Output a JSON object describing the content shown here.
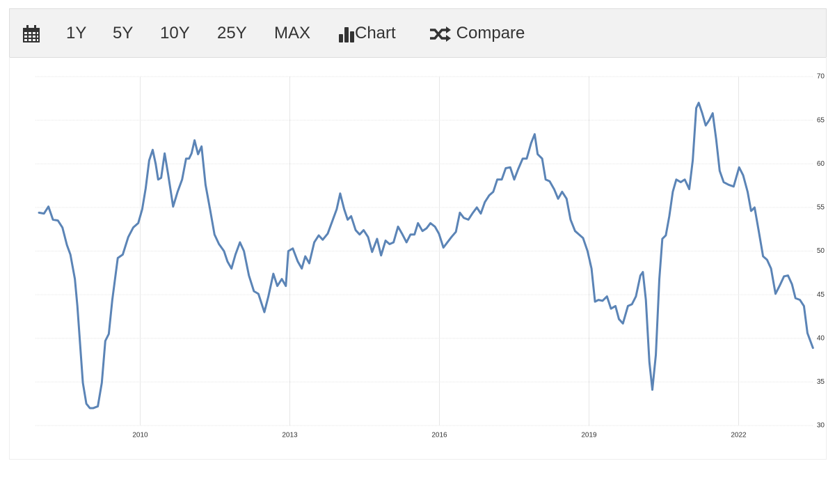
{
  "toolbar": {
    "ranges": [
      "1Y",
      "5Y",
      "10Y",
      "25Y",
      "MAX"
    ],
    "chart": "Chart",
    "compare": "Compare"
  },
  "chart_data": {
    "type": "line",
    "color": "#5b84b6",
    "xlim": [
      2007.9,
      2023.5
    ],
    "xticks": [
      2010,
      2013,
      2016,
      2019,
      2022
    ],
    "ylim": [
      30,
      70
    ],
    "yticks": [
      30,
      35,
      40,
      45,
      50,
      55,
      60,
      65,
      70
    ],
    "grid": true,
    "x": [
      2007.97,
      2008.07,
      2008.16,
      2008.25,
      2008.35,
      2008.44,
      2008.53,
      2008.6,
      2008.69,
      2008.74,
      2008.8,
      2008.85,
      2008.92,
      2008.99,
      2009.06,
      2009.15,
      2009.23,
      2009.3,
      2009.37,
      2009.44,
      2009.55,
      2009.65,
      2009.76,
      2009.86,
      2009.96,
      2010.04,
      2010.11,
      2010.18,
      2010.25,
      2010.31,
      2010.36,
      2010.42,
      2010.49,
      2010.56,
      2010.66,
      2010.75,
      2010.84,
      2010.92,
      2010.98,
      2011.03,
      2011.09,
      2011.16,
      2011.23,
      2011.31,
      2011.4,
      2011.49,
      2011.58,
      2011.68,
      2011.75,
      2011.83,
      2011.91,
      2012.0,
      2012.08,
      2012.18,
      2012.28,
      2012.37,
      2012.49,
      2012.57,
      2012.67,
      2012.75,
      2012.84,
      2012.92,
      2012.97,
      2013.06,
      2013.16,
      2013.24,
      2013.31,
      2013.39,
      2013.49,
      2013.58,
      2013.66,
      2013.76,
      2013.85,
      2013.94,
      2014.01,
      2014.09,
      2014.16,
      2014.23,
      2014.32,
      2014.4,
      2014.48,
      2014.57,
      2014.65,
      2014.75,
      2014.83,
      2014.92,
      2015.0,
      2015.08,
      2015.17,
      2015.25,
      2015.34,
      2015.42,
      2015.5,
      2015.57,
      2015.66,
      2015.74,
      2015.82,
      2015.91,
      2015.99,
      2016.08,
      2016.16,
      2016.24,
      2016.33,
      2016.41,
      2016.49,
      2016.58,
      2016.66,
      2016.75,
      2016.83,
      2016.91,
      2017.0,
      2017.08,
      2017.16,
      2017.25,
      2017.33,
      2017.42,
      2017.5,
      2017.58,
      2017.67,
      2017.75,
      2017.84,
      2017.91,
      2017.97,
      2018.06,
      2018.13,
      2018.21,
      2018.3,
      2018.38,
      2018.46,
      2018.55,
      2018.63,
      2018.72,
      2018.8,
      2018.88,
      2018.97,
      2019.05,
      2019.12,
      2019.19,
      2019.27,
      2019.36,
      2019.44,
      2019.53,
      2019.6,
      2019.68,
      2019.78,
      2019.86,
      2019.94,
      2020.03,
      2020.08,
      2020.14,
      2020.21,
      2020.27,
      2020.34,
      2020.41,
      2020.47,
      2020.54,
      2020.61,
      2020.68,
      2020.75,
      2020.84,
      2020.92,
      2021.01,
      2021.08,
      2021.15,
      2021.2,
      2021.27,
      2021.34,
      2021.41,
      2021.48,
      2021.55,
      2021.62,
      2021.7,
      2021.8,
      2021.9,
      2022.01,
      2022.09,
      2022.18,
      2022.25,
      2022.32,
      2022.4,
      2022.49,
      2022.57,
      2022.65,
      2022.74,
      2022.82,
      2022.91,
      2022.99,
      2023.07,
      2023.14,
      2023.23,
      2023.31,
      2023.38,
      2023.49
    ],
    "values": [
      54.4,
      54.3,
      55.1,
      53.6,
      53.5,
      52.7,
      50.7,
      49.6,
      46.8,
      43.7,
      38.9,
      34.9,
      32.5,
      32.0,
      32.0,
      32.2,
      34.9,
      39.7,
      40.5,
      44.4,
      49.2,
      49.6,
      51.6,
      52.7,
      53.2,
      54.8,
      57.2,
      60.4,
      61.6,
      60.0,
      58.2,
      58.4,
      61.2,
      58.8,
      55.1,
      56.8,
      58.2,
      60.6,
      60.6,
      61.2,
      62.7,
      61.1,
      62.0,
      57.6,
      54.8,
      51.9,
      50.8,
      50.0,
      48.8,
      48.0,
      49.6,
      51.0,
      50.0,
      47.2,
      45.4,
      45.1,
      43.0,
      44.8,
      47.4,
      46.0,
      46.8,
      46.0,
      50.0,
      50.3,
      48.8,
      48.0,
      49.4,
      48.6,
      51.0,
      51.8,
      51.3,
      52.0,
      53.4,
      54.8,
      56.6,
      54.8,
      53.6,
      54.0,
      52.4,
      51.9,
      52.4,
      51.6,
      49.9,
      51.4,
      49.5,
      51.2,
      50.8,
      51.0,
      52.8,
      52.0,
      51.0,
      51.9,
      51.9,
      53.2,
      52.3,
      52.6,
      53.2,
      52.8,
      52.0,
      50.4,
      51.0,
      51.6,
      52.2,
      54.4,
      53.8,
      53.6,
      54.3,
      55.0,
      54.3,
      55.6,
      56.4,
      56.8,
      58.2,
      58.2,
      59.5,
      59.6,
      58.2,
      59.4,
      60.6,
      60.6,
      62.4,
      63.4,
      61.1,
      60.6,
      58.2,
      58.0,
      57.1,
      56.0,
      56.8,
      56.0,
      53.6,
      52.3,
      51.9,
      51.5,
      50.0,
      48.0,
      44.2,
      44.4,
      44.3,
      44.8,
      43.4,
      43.7,
      42.2,
      41.7,
      43.7,
      43.9,
      44.8,
      47.2,
      47.6,
      44.4,
      37.3,
      34.1,
      38.1,
      46.8,
      51.4,
      51.8,
      54.0,
      56.8,
      58.2,
      57.9,
      58.2,
      57.1,
      60.4,
      66.4,
      67.0,
      65.8,
      64.4,
      65.0,
      65.8,
      62.8,
      59.2,
      57.9,
      57.6,
      57.4,
      59.6,
      58.7,
      56.8,
      54.6,
      55.0,
      52.4,
      49.4,
      49.0,
      48.0,
      45.1,
      46.0,
      47.1,
      47.2,
      46.2,
      44.6,
      44.4,
      43.7,
      40.6,
      38.9
    ]
  }
}
